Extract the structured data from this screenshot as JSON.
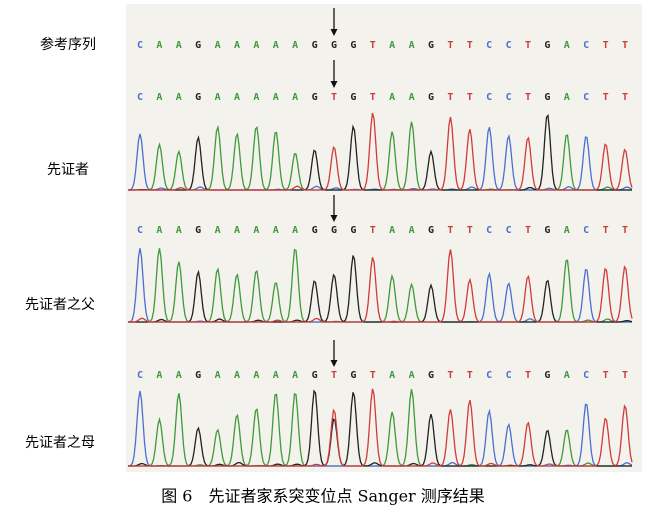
{
  "figure": {
    "rows": [
      {
        "label": "参考序列",
        "sequence": [
          "C",
          "A",
          "A",
          "G",
          "A",
          "A",
          "A",
          "A",
          "A",
          "G",
          "G",
          "G",
          "T",
          "A",
          "A",
          "G",
          "T",
          "T",
          "C",
          "C",
          "T",
          "G",
          "A",
          "C",
          "T",
          "T"
        ]
      },
      {
        "label": "先证者",
        "sequence": [
          "C",
          "A",
          "A",
          "G",
          "A",
          "A",
          "A",
          "A",
          "A",
          "G",
          "T",
          "G",
          "T",
          "A",
          "A",
          "G",
          "T",
          "T",
          "C",
          "C",
          "T",
          "G",
          "A",
          "C",
          "T",
          "T"
        ]
      },
      {
        "label": "先证者之父",
        "sequence": [
          "C",
          "A",
          "A",
          "G",
          "A",
          "A",
          "A",
          "A",
          "A",
          "G",
          "G",
          "G",
          "T",
          "A",
          "A",
          "G",
          "T",
          "T",
          "C",
          "C",
          "T",
          "G",
          "A",
          "C",
          "T",
          "T"
        ]
      },
      {
        "label": "先证者之母",
        "sequence": [
          "C",
          "A",
          "A",
          "G",
          "A",
          "A",
          "A",
          "A",
          "A",
          "G",
          "T",
          "G",
          "T",
          "A",
          "A",
          "G",
          "T",
          "T",
          "C",
          "C",
          "T",
          "G",
          "A",
          "C",
          "T",
          "T"
        ]
      }
    ],
    "caption": "图 6　先证者家系突变位点 Sanger 测序结果"
  }
}
